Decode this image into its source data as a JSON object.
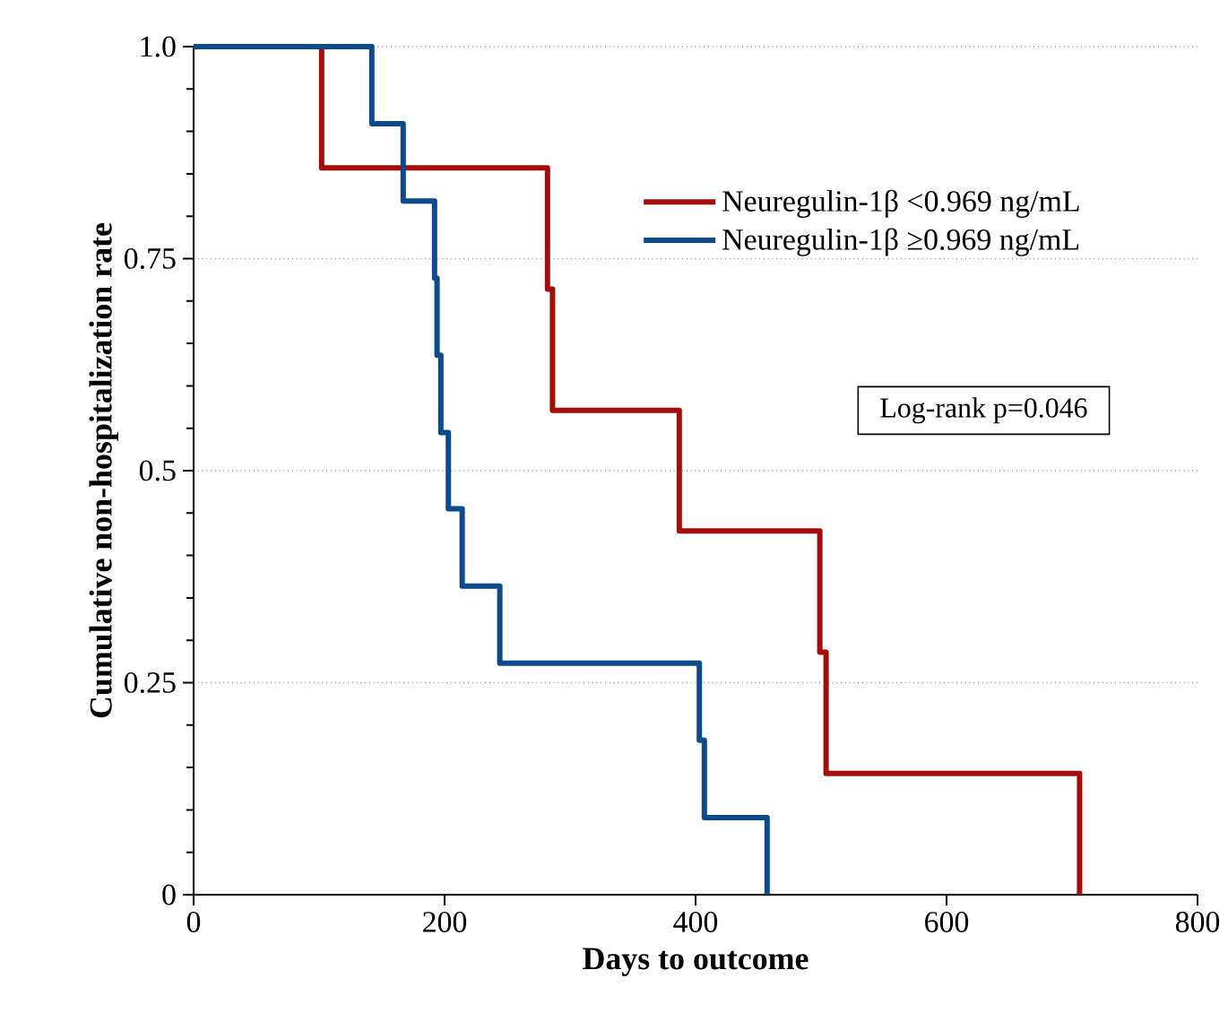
{
  "chart_data": {
    "type": "step",
    "xlabel": "Days to outcome",
    "ylabel": "Cumulative non-hospitalization rate",
    "xlim": [
      0,
      800
    ],
    "xticks": [
      0,
      200,
      400,
      600,
      800
    ],
    "ylim": [
      0,
      1.0
    ],
    "yticks": [
      0,
      0.25,
      0.5,
      0.75,
      {
        "value": 1.0,
        "label": "1.0"
      }
    ],
    "grid": "y",
    "legend": "top right",
    "line_style": "solid",
    "marker": "none",
    "annotations": [
      "Log-rank p=0.046"
    ],
    "series": [
      {
        "name": "Neuregulin-1β <0.969 ng/mL",
        "color": "#a30e0b",
        "x": [
          0,
          102,
          282,
          286,
          387,
          499,
          504,
          706
        ],
        "values": [
          1,
          0.857,
          0.714,
          0.571,
          0.429,
          0.286,
          0.143,
          0
        ]
      },
      {
        "name": "Neuregulin-1β ≥0.969 ng/mL",
        "color": "#0b4a8c",
        "x": [
          0,
          142,
          167,
          192,
          194,
          197,
          203,
          214,
          244,
          403,
          407,
          457
        ],
        "values": [
          1,
          0.909,
          0.818,
          0.727,
          0.636,
          0.545,
          0.455,
          0.364,
          0.273,
          0.182,
          0.091,
          0
        ]
      }
    ]
  }
}
